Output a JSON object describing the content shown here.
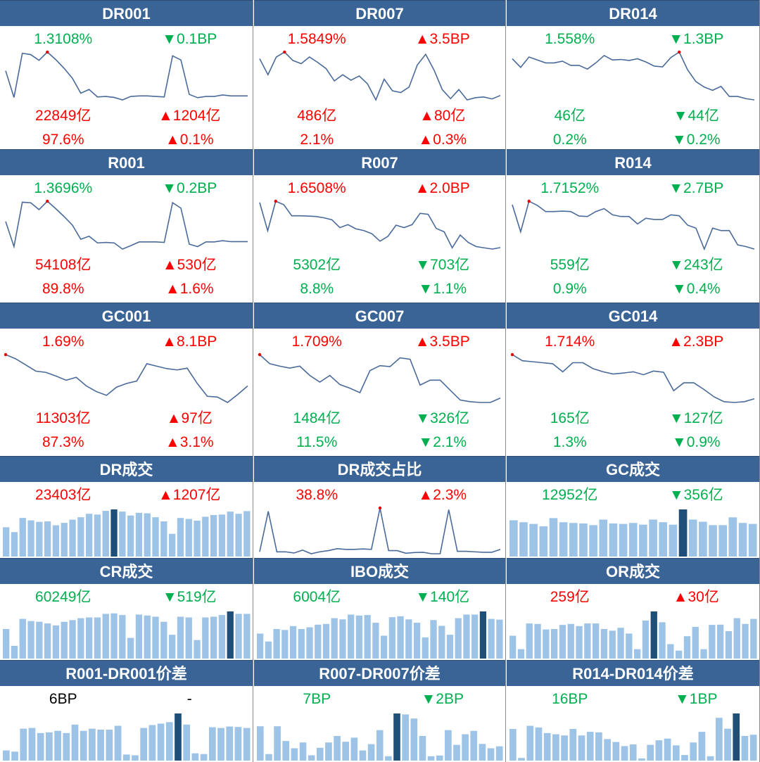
{
  "colors": {
    "header": "#3b6496",
    "up": "#ff0000",
    "down": "#00b050",
    "neutral": "#000000",
    "line": "#4a6a9a",
    "bar": "#9dc3e6",
    "bar_highlight": "#1f4e79",
    "max_marker": "#e00000"
  },
  "panels": [
    {
      "title": "DR001",
      "rows": [
        [
          {
            "t": "1.3108%",
            "c": "down"
          },
          {
            "t": "▼0.1BP",
            "c": "down"
          }
        ],
        [
          {
            "t": "22849亿",
            "c": "up"
          },
          {
            "t": "▲1204亿",
            "c": "up"
          }
        ],
        [
          {
            "t": "97.6%",
            "c": "up"
          },
          {
            "t": "▲0.1%",
            "c": "up"
          }
        ]
      ]
    },
    {
      "title": "DR007",
      "rows": [
        [
          {
            "t": "1.5849%",
            "c": "up"
          },
          {
            "t": "▲3.5BP",
            "c": "up"
          }
        ],
        [
          {
            "t": "486亿",
            "c": "up"
          },
          {
            "t": "▲80亿",
            "c": "up"
          }
        ],
        [
          {
            "t": "2.1%",
            "c": "up"
          },
          {
            "t": "▲0.3%",
            "c": "up"
          }
        ]
      ]
    },
    {
      "title": "DR014",
      "rows": [
        [
          {
            "t": "1.558%",
            "c": "down"
          },
          {
            "t": "▼1.3BP",
            "c": "down"
          }
        ],
        [
          {
            "t": "46亿",
            "c": "down"
          },
          {
            "t": "▼44亿",
            "c": "down"
          }
        ],
        [
          {
            "t": "0.2%",
            "c": "down"
          },
          {
            "t": "▼0.2%",
            "c": "down"
          }
        ]
      ]
    },
    {
      "title": "R001",
      "rows": [
        [
          {
            "t": "1.3696%",
            "c": "down"
          },
          {
            "t": "▼0.2BP",
            "c": "down"
          }
        ],
        [
          {
            "t": "54108亿",
            "c": "up"
          },
          {
            "t": "▲530亿",
            "c": "up"
          }
        ],
        [
          {
            "t": "89.8%",
            "c": "up"
          },
          {
            "t": "▲1.6%",
            "c": "up"
          }
        ]
      ]
    },
    {
      "title": "R007",
      "rows": [
        [
          {
            "t": "1.6508%",
            "c": "up"
          },
          {
            "t": "▲2.0BP",
            "c": "up"
          }
        ],
        [
          {
            "t": "5302亿",
            "c": "down"
          },
          {
            "t": "▼703亿",
            "c": "down"
          }
        ],
        [
          {
            "t": "8.8%",
            "c": "down"
          },
          {
            "t": "▼1.1%",
            "c": "down"
          }
        ]
      ]
    },
    {
      "title": "R014",
      "rows": [
        [
          {
            "t": "1.7152%",
            "c": "down"
          },
          {
            "t": "▼2.7BP",
            "c": "down"
          }
        ],
        [
          {
            "t": "559亿",
            "c": "down"
          },
          {
            "t": "▼243亿",
            "c": "down"
          }
        ],
        [
          {
            "t": "0.9%",
            "c": "down"
          },
          {
            "t": "▼0.4%",
            "c": "down"
          }
        ]
      ]
    },
    {
      "title": "GC001",
      "rows": [
        [
          {
            "t": "1.69%",
            "c": "up"
          },
          {
            "t": "▲8.1BP",
            "c": "up"
          }
        ],
        [
          {
            "t": "11303亿",
            "c": "up"
          },
          {
            "t": "▲97亿",
            "c": "up"
          }
        ],
        [
          {
            "t": "87.3%",
            "c": "up"
          },
          {
            "t": "▲3.1%",
            "c": "up"
          }
        ]
      ]
    },
    {
      "title": "GC007",
      "rows": [
        [
          {
            "t": "1.709%",
            "c": "up"
          },
          {
            "t": "▲3.5BP",
            "c": "up"
          }
        ],
        [
          {
            "t": "1484亿",
            "c": "down"
          },
          {
            "t": "▼326亿",
            "c": "down"
          }
        ],
        [
          {
            "t": "11.5%",
            "c": "down"
          },
          {
            "t": "▼2.1%",
            "c": "down"
          }
        ]
      ]
    },
    {
      "title": "GC014",
      "rows": [
        [
          {
            "t": "1.714%",
            "c": "up"
          },
          {
            "t": "▲2.3BP",
            "c": "up"
          }
        ],
        [
          {
            "t": "165亿",
            "c": "down"
          },
          {
            "t": "▼127亿",
            "c": "down"
          }
        ],
        [
          {
            "t": "1.3%",
            "c": "down"
          },
          {
            "t": "▼0.9%",
            "c": "down"
          }
        ]
      ]
    },
    {
      "title": "DR成交",
      "rows": [
        [
          {
            "t": "23403亿",
            "c": "up"
          },
          {
            "t": "▲1207亿",
            "c": "up"
          }
        ]
      ]
    },
    {
      "title": "DR成交占比",
      "rows": [
        [
          {
            "t": "38.8%",
            "c": "up"
          },
          {
            "t": "▲2.3%",
            "c": "up"
          }
        ]
      ]
    },
    {
      "title": "GC成交",
      "rows": [
        [
          {
            "t": "12952亿",
            "c": "down"
          },
          {
            "t": "▼356亿",
            "c": "down"
          }
        ]
      ]
    },
    {
      "title": "CR成交",
      "rows": [
        [
          {
            "t": "60249亿",
            "c": "down"
          },
          {
            "t": "▼519亿",
            "c": "down"
          }
        ]
      ]
    },
    {
      "title": "IBO成交",
      "rows": [
        [
          {
            "t": "6004亿",
            "c": "down"
          },
          {
            "t": "▼140亿",
            "c": "down"
          }
        ]
      ]
    },
    {
      "title": "OR成交",
      "rows": [
        [
          {
            "t": "259亿",
            "c": "up"
          },
          {
            "t": "▲30亿",
            "c": "up"
          }
        ]
      ]
    },
    {
      "title": "R001-DR001价差",
      "rows": [
        [
          {
            "t": "6BP",
            "c": "neutral"
          },
          {
            "t": "-",
            "c": "neutral"
          }
        ]
      ]
    },
    {
      "title": "R007-DR007价差",
      "rows": [
        [
          {
            "t": "7BP",
            "c": "down"
          },
          {
            "t": "▼2BP",
            "c": "down"
          }
        ]
      ]
    },
    {
      "title": "R014-DR014价差",
      "rows": [
        [
          {
            "t": "16BP",
            "c": "down"
          },
          {
            "t": "▼1BP",
            "c": "down"
          }
        ]
      ]
    }
  ],
  "chart_data": [
    {
      "type": "line",
      "title": "DR001",
      "values": [
        125,
        18,
        195,
        190,
        167,
        200,
        170,
        135,
        95,
        35,
        50,
        20,
        22,
        18,
        8,
        22,
        24,
        24,
        22,
        20,
        185,
        168,
        30,
        17,
        22,
        22,
        28,
        24,
        24,
        24
      ],
      "marker": 5
    },
    {
      "type": "line",
      "title": "DR007",
      "values": [
        185,
        120,
        192,
        212,
        178,
        165,
        192,
        170,
        145,
        95,
        120,
        98,
        115,
        83,
        18,
        102,
        55,
        48,
        70,
        160,
        203,
        140,
        60,
        23,
        60,
        18,
        27,
        30,
        22,
        36
      ],
      "marker": 3
    },
    {
      "type": "line",
      "title": "DR014",
      "values": [
        185,
        150,
        192,
        180,
        168,
        168,
        175,
        158,
        158,
        143,
        168,
        198,
        180,
        182,
        178,
        185,
        172,
        155,
        152,
        190,
        212,
        140,
        92,
        70,
        57,
        73,
        32,
        32,
        23,
        18
      ],
      "marker": 20
    },
    {
      "type": "line",
      "title": "R001",
      "values": [
        140,
        38,
        218,
        216,
        188,
        222,
        192,
        160,
        125,
        68,
        80,
        53,
        55,
        53,
        28,
        42,
        57,
        57,
        57,
        55,
        216,
        194,
        48,
        38,
        57,
        57,
        62,
        58,
        58,
        58
      ],
      "marker": 5
    },
    {
      "type": "line",
      "title": "R007",
      "values": [
        217,
        102,
        222,
        208,
        163,
        163,
        162,
        160,
        155,
        147,
        115,
        127,
        110,
        103,
        90,
        60,
        80,
        125,
        115,
        127,
        173,
        169,
        112,
        98,
        33,
        85,
        55,
        38,
        33,
        28,
        34
      ],
      "marker": 2
    },
    {
      "type": "line",
      "title": "R014",
      "values": [
        208,
        98,
        222,
        205,
        180,
        180,
        182,
        180,
        162,
        160,
        180,
        192,
        167,
        160,
        160,
        130,
        153,
        148,
        148,
        167,
        163,
        125,
        113,
        28,
        113,
        103,
        103,
        45,
        38,
        28
      ],
      "marker": 2
    },
    {
      "type": "line",
      "title": "GC001",
      "values": [
        222,
        205,
        180,
        155,
        150,
        135,
        118,
        130,
        95,
        72,
        57,
        90,
        105,
        115,
        185,
        175,
        165,
        160,
        167,
        105,
        53,
        50,
        28,
        60,
        95
      ],
      "marker": 0
    },
    {
      "type": "line",
      "title": "GC007",
      "values": [
        222,
        185,
        175,
        167,
        175,
        137,
        110,
        137,
        100,
        85,
        67,
        157,
        177,
        173,
        209,
        203,
        98,
        118,
        118,
        77,
        37,
        30,
        27,
        27,
        45
      ],
      "marker": 0
    },
    {
      "type": "line",
      "title": "GC014",
      "values": [
        222,
        197,
        193,
        189,
        185,
        152,
        189,
        189,
        165,
        152,
        143,
        147,
        152,
        140,
        155,
        150,
        75,
        107,
        107,
        80,
        50,
        30,
        27,
        30,
        42
      ],
      "marker": 0
    },
    {
      "type": "bar",
      "title": "DR成交",
      "values": [
        120,
        100,
        158,
        148,
        142,
        144,
        128,
        138,
        151,
        161,
        175,
        172,
        187,
        193,
        184,
        168,
        179,
        177,
        161,
        144,
        93,
        158,
        154,
        147,
        163,
        170,
        172,
        184,
        175,
        186
      ],
      "highlight": 13
    },
    {
      "type": "line",
      "title": "DR成交占比",
      "values": [
        15,
        183,
        15,
        15,
        10,
        22,
        7,
        15,
        20,
        28,
        25,
        25,
        27,
        25,
        197,
        20,
        20,
        9,
        12,
        13,
        7,
        7,
        190,
        17,
        17,
        15,
        13,
        13,
        25
      ],
      "marker": 14
    },
    {
      "type": "bar",
      "title": "GC成交",
      "values": [
        150,
        142,
        135,
        125,
        159,
        142,
        139,
        137,
        130,
        153,
        137,
        135,
        139,
        132,
        153,
        142,
        132,
        195,
        153,
        144,
        130,
        130,
        162,
        139,
        135
      ],
      "highlight": 17
    },
    {
      "type": "bar",
      "title": "CR成交",
      "values": [
        123,
        53,
        165,
        156,
        153,
        146,
        138,
        153,
        160,
        168,
        171,
        171,
        186,
        188,
        181,
        86,
        183,
        179,
        174,
        153,
        99,
        174,
        171,
        77,
        171,
        174,
        181,
        196,
        186,
        186
      ],
      "highlight": 27
    },
    {
      "type": "bar",
      "title": "IBO成交",
      "values": [
        104,
        71,
        123,
        119,
        135,
        123,
        130,
        141,
        144,
        168,
        163,
        183,
        179,
        181,
        149,
        95,
        172,
        176,
        163,
        149,
        88,
        160,
        136,
        99,
        168,
        183,
        183,
        196,
        165,
        162
      ],
      "highlight": 27
    },
    {
      "type": "bar",
      "title": "OR成交",
      "values": [
        95,
        39,
        146,
        144,
        121,
        123,
        140,
        144,
        135,
        146,
        146,
        123,
        116,
        128,
        104,
        39,
        158,
        196,
        151,
        60,
        33,
        93,
        132,
        39,
        140,
        141,
        114,
        168,
        144,
        165
      ],
      "highlight": 17
    },
    {
      "type": "bar",
      "title": "R001-DR001价差",
      "values": [
        42,
        37,
        132,
        135,
        114,
        117,
        123,
        114,
        149,
        123,
        132,
        128,
        128,
        144,
        25,
        22,
        135,
        147,
        153,
        159,
        195,
        149,
        30,
        27,
        138,
        135,
        141,
        139,
        135
      ],
      "highlight": 20
    },
    {
      "type": "bar",
      "title": "R007-DR007价差",
      "values": [
        142,
        27,
        142,
        81,
        51,
        75,
        22,
        53,
        75,
        102,
        78,
        95,
        42,
        68,
        126,
        18,
        195,
        191,
        174,
        102,
        18,
        21,
        126,
        65,
        109,
        123,
        69,
        51,
        59
      ],
      "highlight": 16
    },
    {
      "type": "bar",
      "title": "R014-DR014价差",
      "values": [
        131,
        11,
        144,
        137,
        114,
        109,
        104,
        131,
        104,
        119,
        117,
        89,
        77,
        60,
        67,
        9,
        65,
        84,
        91,
        63,
        23,
        75,
        119,
        18,
        177,
        132,
        195,
        102,
        107
      ],
      "highlight": 26
    }
  ]
}
